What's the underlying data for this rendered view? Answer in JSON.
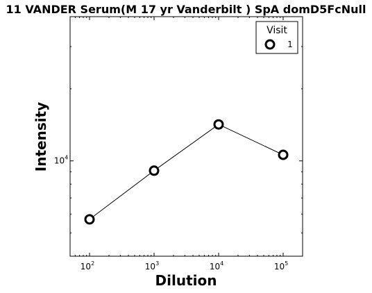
{
  "chart_data": {
    "type": "line",
    "title": "11 VANDER Serum(M 17 yr Vanderbilt ) SpA domD5FcNull",
    "xlabel": "Dilution",
    "ylabel": "Intensity",
    "xscale": "log",
    "yscale": "log",
    "xlim": [
      50,
      200000
    ],
    "ylim": [
      4000,
      40000
    ],
    "x_ticks": [
      {
        "value": 100,
        "base": "10",
        "exp": "2"
      },
      {
        "value": 1000,
        "base": "10",
        "exp": "3"
      },
      {
        "value": 10000,
        "base": "10",
        "exp": "4"
      },
      {
        "value": 100000,
        "base": "10",
        "exp": "5"
      }
    ],
    "y_ticks": [
      {
        "value": 10000,
        "base": "10",
        "exp": "4"
      }
    ],
    "series": [
      {
        "name": "1",
        "x": [
          100,
          1000,
          10000,
          100000
        ],
        "y": [
          5700,
          9100,
          14200,
          10600
        ],
        "color": "#000000",
        "marker": "open-circle"
      }
    ],
    "legend": {
      "title": "Visit",
      "placement": "top-right"
    },
    "grid": false
  }
}
